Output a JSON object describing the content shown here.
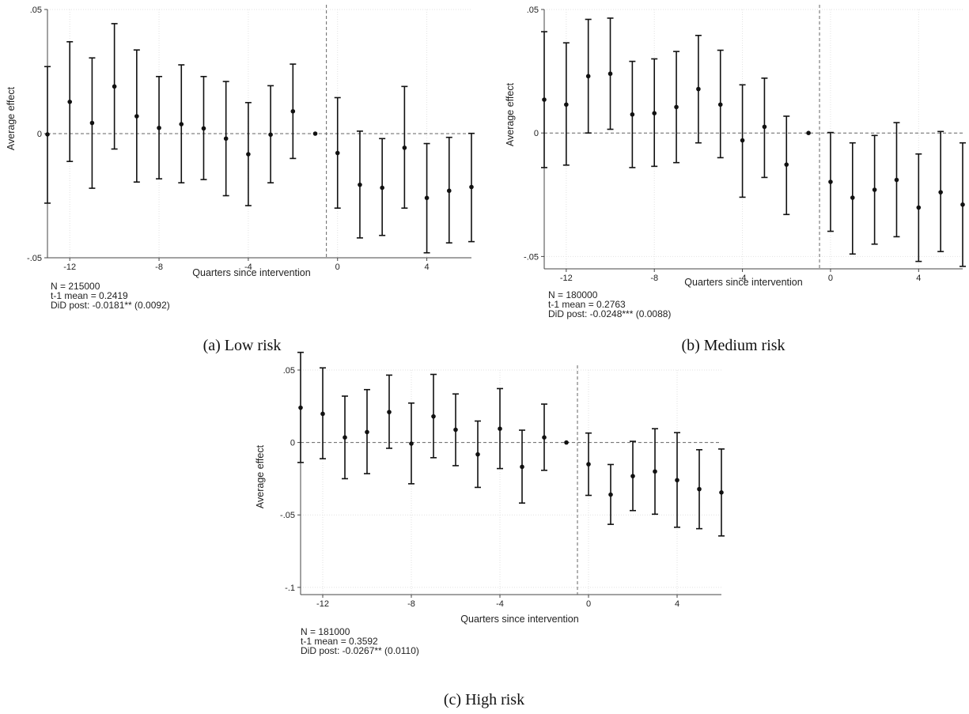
{
  "chart_data": [
    {
      "type": "scatter",
      "caption": "(a) Low risk",
      "xlabel": "Quarters since intervention",
      "ylabel": "Average effect",
      "xlim": [
        -13,
        6
      ],
      "ylim": [
        -0.05,
        0.05
      ],
      "xticks": [
        -12,
        -8,
        -4,
        0,
        4
      ],
      "xtick_labels": [
        "-12",
        "-8",
        "-4",
        "0",
        "4"
      ],
      "yticks": [
        -0.05,
        0,
        0.05
      ],
      "ytick_labels": [
        "-.05",
        "0",
        ".05"
      ],
      "grid": true,
      "reference_lines": {
        "horizontal_y": 0,
        "vertical_x": -0.5
      },
      "x": [
        -13,
        -12,
        -11,
        -10,
        -9,
        -8,
        -7,
        -6,
        -5,
        -4,
        -3,
        -2,
        -1,
        0,
        1,
        2,
        3,
        4,
        5,
        6
      ],
      "estimate": [
        -0.0003,
        0.0128,
        0.0043,
        0.019,
        0.007,
        0.0023,
        0.0038,
        0.0021,
        -0.002,
        -0.0083,
        -0.0004,
        0.009,
        0.0,
        -0.0078,
        -0.0206,
        -0.0218,
        -0.0057,
        -0.0259,
        -0.023,
        -0.0215
      ],
      "ci_low": [
        -0.028,
        -0.0112,
        -0.022,
        -0.0062,
        -0.0195,
        -0.0182,
        -0.0198,
        -0.0185,
        -0.025,
        -0.029,
        -0.0198,
        -0.01,
        0.0,
        -0.03,
        -0.042,
        -0.041,
        -0.03,
        -0.048,
        -0.044,
        -0.0435
      ],
      "ci_high": [
        0.027,
        0.037,
        0.0305,
        0.0443,
        0.0337,
        0.023,
        0.0277,
        0.023,
        0.021,
        0.0125,
        0.0193,
        0.028,
        0.0,
        0.0145,
        0.001,
        -0.002,
        0.019,
        -0.004,
        -0.0015,
        0.0001
      ],
      "notes": [
        "N = 215000",
        "t-1 mean =  0.2419",
        "DiD post: -0.0181** (0.0092)"
      ]
    },
    {
      "type": "scatter",
      "caption": "(b) Medium risk",
      "xlabel": "Quarters since intervention",
      "ylabel": "Average effect",
      "xlim": [
        -13,
        6
      ],
      "ylim": [
        -0.055,
        0.05
      ],
      "xticks": [
        -12,
        -8,
        -4,
        0,
        4
      ],
      "xtick_labels": [
        "-12",
        "-8",
        "-4",
        "0",
        "4"
      ],
      "yticks": [
        -0.05,
        0,
        0.05
      ],
      "ytick_labels": [
        "-.05",
        "0",
        ".05"
      ],
      "grid": true,
      "reference_lines": {
        "horizontal_y": 0,
        "vertical_x": -0.5
      },
      "x": [
        -13,
        -12,
        -11,
        -10,
        -9,
        -8,
        -7,
        -6,
        -5,
        -4,
        -3,
        -2,
        -1,
        0,
        1,
        2,
        3,
        4,
        5,
        6
      ],
      "estimate": [
        0.0135,
        0.0115,
        0.023,
        0.024,
        0.0075,
        0.008,
        0.0105,
        0.0178,
        0.0115,
        -0.003,
        0.0025,
        -0.0128,
        0.0,
        -0.0198,
        -0.0262,
        -0.023,
        -0.019,
        -0.0302,
        -0.024,
        -0.029
      ],
      "ci_low": [
        -0.014,
        -0.013,
        0.0,
        0.0015,
        -0.014,
        -0.0135,
        -0.012,
        -0.004,
        -0.01,
        -0.026,
        -0.018,
        -0.033,
        0.0,
        -0.0398,
        -0.049,
        -0.045,
        -0.042,
        -0.052,
        -0.048,
        -0.054
      ],
      "ci_high": [
        0.041,
        0.0365,
        0.046,
        0.0465,
        0.029,
        0.03,
        0.033,
        0.0395,
        0.0335,
        0.0195,
        0.0222,
        0.0068,
        0.0,
        0.0002,
        -0.004,
        -0.001,
        0.0042,
        -0.0085,
        0.0006,
        -0.004
      ],
      "notes": [
        "N = 180000",
        "t-1 mean =  0.2763",
        "DiD post: -0.0248*** (0.0088)"
      ]
    },
    {
      "type": "scatter",
      "caption": "(c) High risk",
      "xlabel": "Quarters since intervention",
      "ylabel": "Average effect",
      "xlim": [
        -13,
        6
      ],
      "ylim": [
        -0.105,
        0.05
      ],
      "xticks": [
        -12,
        -8,
        -4,
        0,
        4
      ],
      "xtick_labels": [
        "-12",
        "-8",
        "-4",
        "0",
        "4"
      ],
      "yticks": [
        -0.1,
        -0.05,
        0,
        0.05
      ],
      "ytick_labels": [
        "-.1",
        "-.05",
        "0",
        ".05"
      ],
      "grid": true,
      "reference_lines": {
        "horizontal_y": 0,
        "vertical_x": -0.5
      },
      "x": [
        -13,
        -12,
        -11,
        -10,
        -9,
        -8,
        -7,
        -6,
        -5,
        -4,
        -3,
        -2,
        -1,
        0,
        1,
        2,
        3,
        4,
        5,
        6
      ],
      "estimate": [
        0.024,
        0.0198,
        0.0035,
        0.0072,
        0.021,
        -0.0008,
        0.018,
        0.0088,
        -0.0082,
        0.0095,
        -0.0168,
        0.0035,
        0.0,
        -0.015,
        -0.036,
        -0.0232,
        -0.02,
        -0.026,
        -0.0322,
        -0.0345
      ],
      "ci_low": [
        -0.0138,
        -0.0112,
        -0.025,
        -0.0215,
        -0.004,
        -0.0285,
        -0.0105,
        -0.016,
        -0.031,
        -0.018,
        -0.0418,
        -0.0192,
        0.0,
        -0.0365,
        -0.0565,
        -0.047,
        -0.0495,
        -0.0585,
        -0.0595,
        -0.0645
      ],
      "ci_high": [
        0.0622,
        0.0515,
        0.032,
        0.0365,
        0.0465,
        0.0272,
        0.047,
        0.0335,
        0.0148,
        0.0372,
        0.0085,
        0.0265,
        0.0,
        0.0065,
        -0.0152,
        0.0008,
        0.0095,
        0.0068,
        -0.005,
        -0.0045
      ],
      "notes": [
        "N = 181000",
        "t-1 mean =  0.3592",
        "DiD post: -0.0267** (0.0110)"
      ]
    }
  ]
}
